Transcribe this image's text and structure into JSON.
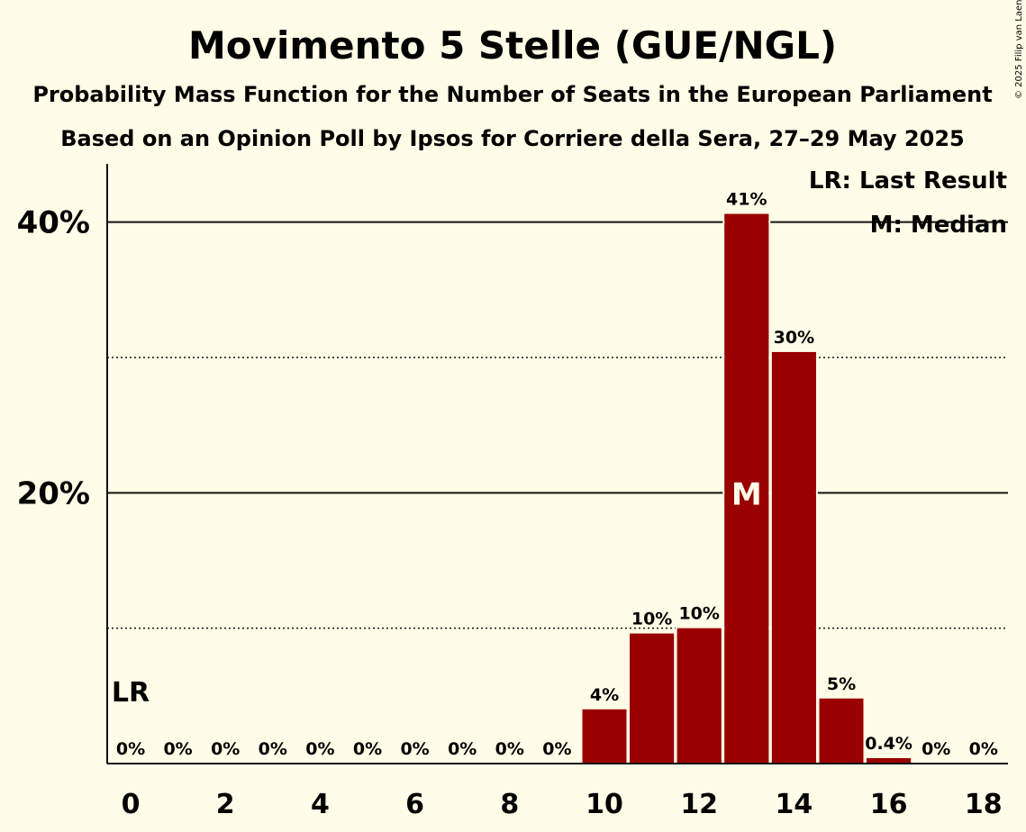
{
  "chart_data": {
    "type": "bar",
    "title": "Movimento 5 Stelle (GUE/NGL)",
    "subtitle": "Probability Mass Function for the Number of Seats in the European Parliament",
    "subtitle2": "Based on an Opinion Poll by Ipsos for Corriere della Sera, 27–29 May 2025",
    "copyright": "© 2025 Filip van Laenen",
    "categories": [
      0,
      1,
      2,
      3,
      4,
      5,
      6,
      7,
      8,
      9,
      10,
      11,
      12,
      13,
      14,
      15,
      16,
      17,
      18
    ],
    "values": [
      0,
      0,
      0,
      0,
      0,
      0,
      0,
      0,
      0,
      0,
      4,
      9.6,
      10,
      40.6,
      30.4,
      4.8,
      0.4,
      0,
      0
    ],
    "data_labels": [
      "0%",
      "0%",
      "0%",
      "0%",
      "0%",
      "0%",
      "0%",
      "0%",
      "0%",
      "0%",
      "4%",
      "10%",
      "10%",
      "41%",
      "30%",
      "5%",
      "0.4%",
      "0%",
      "0%"
    ],
    "x_tick_labels": [
      "0",
      "2",
      "4",
      "6",
      "8",
      "10",
      "12",
      "14",
      "16",
      "18"
    ],
    "y_ticks": [
      20,
      40
    ],
    "y_tick_labels": [
      "20%",
      "40%"
    ],
    "y_minor_ticks": [
      10,
      30
    ],
    "ylim": [
      0,
      44.3
    ],
    "bar_color": "#990000",
    "last_result_seat": 0,
    "last_result_label": "LR",
    "median_seat": 13,
    "median_label": "M",
    "legend": [
      "LR: Last Result",
      "M: Median"
    ]
  }
}
